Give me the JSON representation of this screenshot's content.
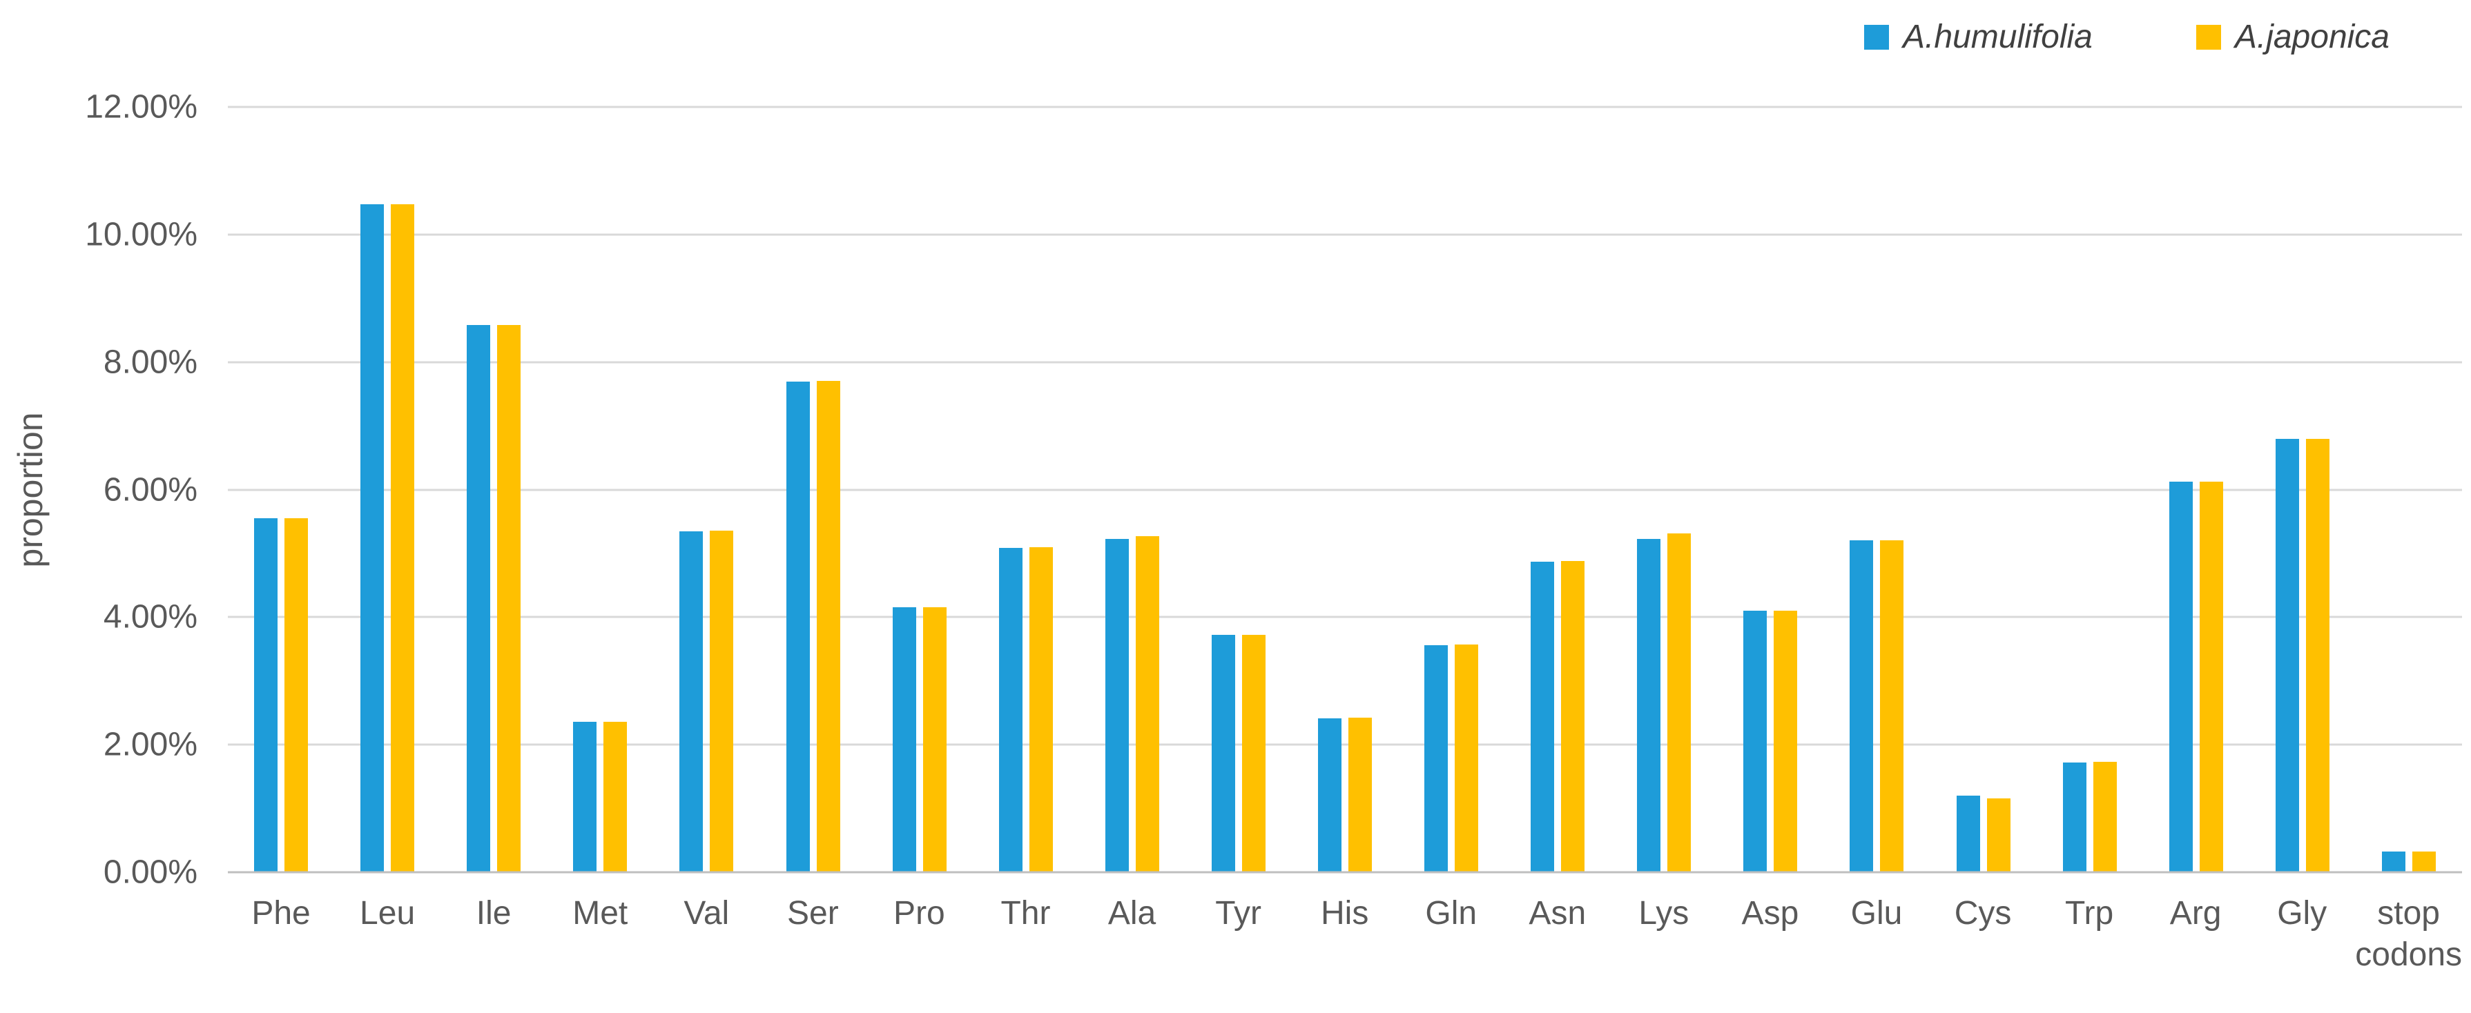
{
  "axes": {
    "y_title": "proportion"
  },
  "style": {
    "text_color": "#595959",
    "gridline_color": "#D9D9D9",
    "axisline_color": "#BFBFBF",
    "background": "#FFFFFF",
    "series1_color": "#1E9CD9",
    "series2_color": "#FFC000"
  },
  "chart_data": {
    "type": "bar",
    "title": "",
    "xlabel": "",
    "ylabel": "proportion",
    "ylim": [
      0,
      12
    ],
    "grid": true,
    "legend_position": "top-right",
    "yticks": [
      {
        "value": 0,
        "label": "0.00%"
      },
      {
        "value": 2,
        "label": "2.00%"
      },
      {
        "value": 4,
        "label": "4.00%"
      },
      {
        "value": 6,
        "label": "6.00%"
      },
      {
        "value": 8,
        "label": "8.00%"
      },
      {
        "value": 10,
        "label": "10.00%"
      },
      {
        "value": 12,
        "label": "12.00%"
      }
    ],
    "categories": [
      "Phe",
      "Leu",
      "Ile",
      "Met",
      "Val",
      "Ser",
      "Pro",
      "Thr",
      "Ala",
      "Tyr",
      "His",
      "Gln",
      "Asn",
      "Lys",
      "Asp",
      "Glu",
      "Cys",
      "Trp",
      "Arg",
      "Gly",
      "stop codons"
    ],
    "series": [
      {
        "name": "A.humulifolia",
        "color": "#1E9CD9",
        "values": [
          5.55,
          10.47,
          8.58,
          2.36,
          5.35,
          7.69,
          4.15,
          5.09,
          5.23,
          3.72,
          2.41,
          3.56,
          4.87,
          5.23,
          4.1,
          5.2,
          1.2,
          1.72,
          6.12,
          6.8,
          0.32
        ]
      },
      {
        "name": "A.japonica",
        "color": "#FFC000",
        "values": [
          5.55,
          10.47,
          8.58,
          2.36,
          5.36,
          7.7,
          4.15,
          5.1,
          5.27,
          3.72,
          2.42,
          3.57,
          4.88,
          5.31,
          4.1,
          5.2,
          1.16,
          1.73,
          6.12,
          6.8,
          0.32
        ]
      }
    ]
  }
}
